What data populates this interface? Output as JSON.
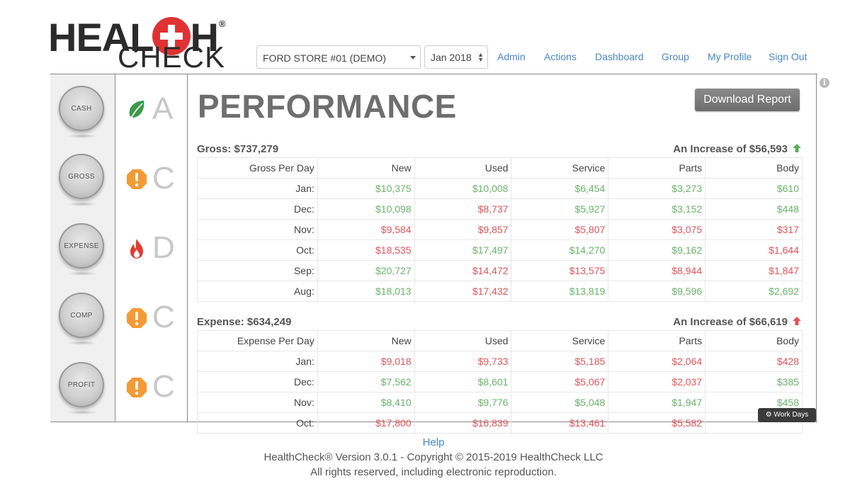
{
  "logo": {
    "line1_left": "HEAL",
    "line1_right": "H",
    "reg": "®",
    "line2": "CHECK"
  },
  "header": {
    "store": "FORD STORE #01 (DEMO)",
    "month": "Jan 2018",
    "nav": [
      "Admin",
      "Actions",
      "Dashboard",
      "Group",
      "My Profile",
      "Sign Out"
    ]
  },
  "info_icon": "i",
  "sidebar": {
    "knobs": [
      "CASH",
      "GROSS",
      "EXPENSE",
      "COMP",
      "PROFIT"
    ],
    "grades": [
      {
        "icon": "leaf-icon",
        "letter": "A"
      },
      {
        "icon": "warning-octagon-icon",
        "letter": "C"
      },
      {
        "icon": "fire-icon",
        "letter": "D"
      },
      {
        "icon": "warning-octagon-icon",
        "letter": "C"
      },
      {
        "icon": "warning-octagon-icon",
        "letter": "C"
      }
    ]
  },
  "main": {
    "title": "PERFORMANCE",
    "download_label": "Download Report",
    "gross": {
      "title": "Gross: $737,279",
      "change": "An Increase of $56,593",
      "headers": [
        "Gross Per Day",
        "New",
        "Used",
        "Service",
        "Parts",
        "Body"
      ],
      "rows": [
        {
          "label": "Jan:",
          "cells": [
            [
              "$10,375",
              "g"
            ],
            [
              "$10,008",
              "g"
            ],
            [
              "$6,454",
              "g"
            ],
            [
              "$3,273",
              "g"
            ],
            [
              "$610",
              "g"
            ]
          ]
        },
        {
          "label": "Dec:",
          "cells": [
            [
              "$10,098",
              "g"
            ],
            [
              "$8,737",
              "r"
            ],
            [
              "$5,927",
              "g"
            ],
            [
              "$3,152",
              "g"
            ],
            [
              "$448",
              "g"
            ]
          ]
        },
        {
          "label": "Nov:",
          "cells": [
            [
              "$9,584",
              "r"
            ],
            [
              "$9,857",
              "r"
            ],
            [
              "$5,807",
              "r"
            ],
            [
              "$3,075",
              "r"
            ],
            [
              "$317",
              "r"
            ]
          ]
        },
        {
          "label": "Oct:",
          "cells": [
            [
              "$18,535",
              "r"
            ],
            [
              "$17,497",
              "g"
            ],
            [
              "$14,270",
              "g"
            ],
            [
              "$9,162",
              "g"
            ],
            [
              "$1,644",
              "r"
            ]
          ]
        },
        {
          "label": "Sep:",
          "cells": [
            [
              "$20,727",
              "g"
            ],
            [
              "$14,472",
              "r"
            ],
            [
              "$13,575",
              "r"
            ],
            [
              "$8,944",
              "r"
            ],
            [
              "$1,847",
              "r"
            ]
          ]
        },
        {
          "label": "Aug:",
          "cells": [
            [
              "$18,013",
              "g"
            ],
            [
              "$17,432",
              "r"
            ],
            [
              "$13,819",
              "g"
            ],
            [
              "$9,596",
              "g"
            ],
            [
              "$2,692",
              "g"
            ]
          ]
        }
      ]
    },
    "expense": {
      "title": "Expense: $634,249",
      "change": "An Increase of $66,619",
      "headers": [
        "Expense Per Day",
        "New",
        "Used",
        "Service",
        "Parts",
        "Body"
      ],
      "rows": [
        {
          "label": "Jan:",
          "cells": [
            [
              "$9,018",
              "r"
            ],
            [
              "$9,733",
              "r"
            ],
            [
              "$5,185",
              "r"
            ],
            [
              "$2,064",
              "r"
            ],
            [
              "$428",
              "r"
            ]
          ]
        },
        {
          "label": "Dec:",
          "cells": [
            [
              "$7,562",
              "g"
            ],
            [
              "$8,601",
              "g"
            ],
            [
              "$5,067",
              "r"
            ],
            [
              "$2,037",
              "r"
            ],
            [
              "$385",
              "g"
            ]
          ]
        },
        {
          "label": "Nov:",
          "cells": [
            [
              "$8,410",
              "g"
            ],
            [
              "$9,776",
              "g"
            ],
            [
              "$5,048",
              "g"
            ],
            [
              "$1,947",
              "g"
            ],
            [
              "$458",
              "g"
            ]
          ]
        },
        {
          "label": "Oct:",
          "cells": [
            [
              "$17,800",
              "r"
            ],
            [
              "$16,839",
              "r"
            ],
            [
              "$13,461",
              "r"
            ],
            [
              "$5,582",
              "r"
            ],
            [
              "",
              ""
            ]
          ]
        }
      ]
    },
    "workdays_label": "Work Days"
  },
  "footer": {
    "help": "Help",
    "copyright": "HealthCheck® Version 3.0.1 - Copyright © 2015-2019 HealthCheck LLC",
    "rights": "All rights reserved, including electronic reproduction."
  },
  "colors": {
    "green": "#6ab36a",
    "red": "#e0555a",
    "accent": "#4a86c5",
    "logo_red": "#e03234"
  }
}
